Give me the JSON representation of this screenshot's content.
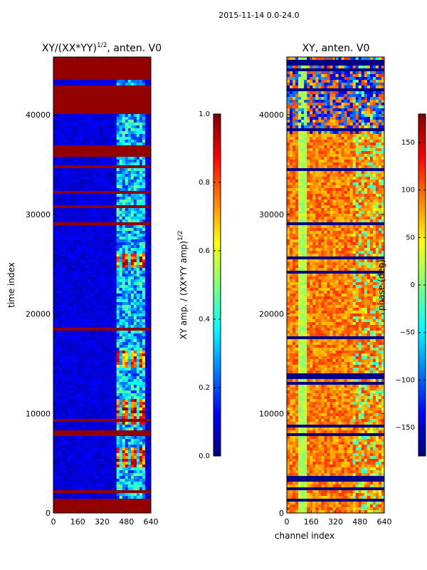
{
  "suptitle": "2015-11-14 0.0-24.0",
  "chart_data": [
    {
      "type": "heatmap",
      "title": "XY/(XX*YY)^1/2, anten. V0",
      "xlabel": "",
      "ylabel": "time index",
      "xlim": [
        0,
        640
      ],
      "ylim": [
        0,
        45800
      ],
      "x_ticks": [
        "0",
        "160",
        "320",
        "480",
        "640"
      ],
      "y_ticks": [
        "0",
        "10000",
        "20000",
        "30000",
        "40000"
      ],
      "colorbar": {
        "label": "XY amp. / (XX*YY amp)^1/2",
        "range": [
          0.0,
          1.0
        ],
        "ticks": [
          "0.0",
          "0.2",
          "0.4",
          "0.6",
          "0.8",
          "1.0"
        ]
      },
      "features": {
        "saturated_time_bands": [
          [
            0,
            1500
          ],
          [
            35900,
            37000
          ],
          [
            40000,
            43000
          ],
          [
            43500,
            45800
          ]
        ],
        "active_channel_range": [
          420,
          600
        ],
        "high_amp_time_ranges": [
          [
            4500,
            6700
          ],
          [
            8800,
            11500
          ],
          [
            14500,
            16300
          ],
          [
            24500,
            26000
          ]
        ]
      }
    },
    {
      "type": "heatmap",
      "title": "XY, anten. V0",
      "xlabel": "channel index",
      "ylabel": "",
      "xlim": [
        0,
        640
      ],
      "ylim": [
        0,
        45800
      ],
      "x_ticks": [
        "0",
        "160",
        "320",
        "480",
        "640"
      ],
      "y_ticks": [
        "0",
        "10000",
        "20000",
        "30000",
        "40000"
      ],
      "colorbar": {
        "label": "phase (deg)",
        "range": [
          -180,
          180
        ],
        "ticks": [
          "-150",
          "-100",
          "-50",
          "0",
          "50",
          "100",
          "150"
        ]
      },
      "features": {
        "dominant_phase_deg": [
          60,
          120
        ],
        "low_channel_band_deg": [
          0,
          30
        ],
        "low_channel_range": [
          80,
          140
        ]
      }
    }
  ],
  "colormap": [
    "#00007f",
    "#0000ff",
    "#007fff",
    "#00ffff",
    "#7fff7f",
    "#ffff00",
    "#ff7f00",
    "#ff0000",
    "#7f0000"
  ]
}
